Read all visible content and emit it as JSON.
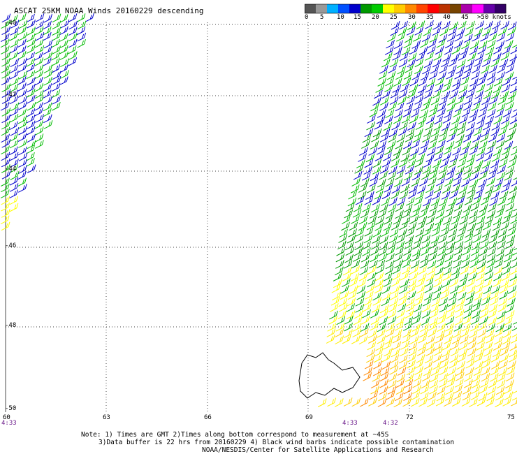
{
  "title": "ASCAT 25KM NOAA Winds 20160229 descending",
  "color_scale": {
    "labels": [
      "0",
      "5",
      "10",
      "15",
      "20",
      "25",
      "30",
      "35",
      "40",
      "45",
      ">50 knots"
    ],
    "colors": [
      "#555555",
      "#999999",
      "#00b0ff",
      "#0050ff",
      "#0000cc",
      "#009900",
      "#00cc00",
      "#ffff00",
      "#ffcc00",
      "#ff8800",
      "#ff4400",
      "#ff0000",
      "#bb3300",
      "#774400",
      "#aa00aa",
      "#ff00ff",
      "#6600aa",
      "#330066"
    ]
  },
  "lat_labels": [
    "-40",
    "-42",
    "-44",
    "-46",
    "-48",
    "-50"
  ],
  "lon_labels": [
    "60",
    "63",
    "66",
    "69",
    "72",
    "75"
  ],
  "time_labels": [
    "4:33",
    "4:33",
    "4:32"
  ],
  "notes": [
    "Note: 1) Times are GMT 2)Times along bottom correspond to measurement at ~45S",
    "3)Data buffer is 22 hrs from 20160229 4) Black wind barbs indicate possible contamination",
    "NOAA/NESDIS/Center for Satellite Applications and Research"
  ]
}
